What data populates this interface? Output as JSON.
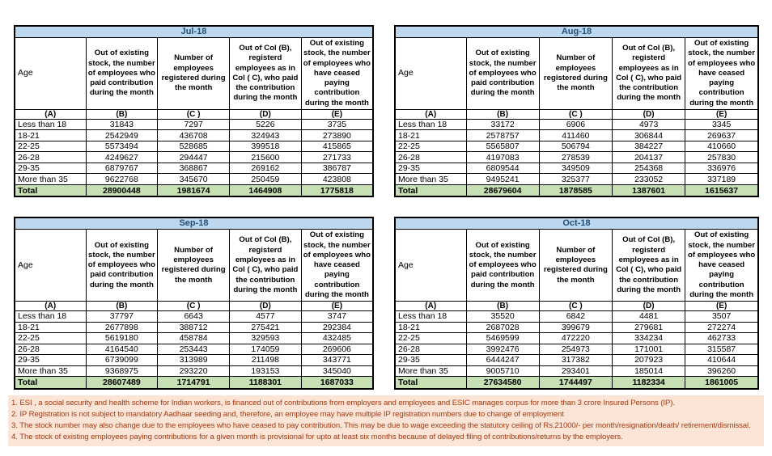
{
  "header_columns": {
    "age": "Age",
    "b": "Out of existing stock, the number of employees who paid contribution during the month",
    "c": "Number of employees registered during the month",
    "d": "Out of Col (B), registerd employees as in Col ( C), who paid the contribution during the month",
    "e": "Out of existing stock, the number of  employees who have ceased paying contribution during the month",
    "letters": [
      "(A)",
      "(B)",
      "(C )",
      "(D)",
      "(E)"
    ]
  },
  "tables": [
    {
      "month": "Jul-18",
      "rows": [
        {
          "age": "Less than 18",
          "values": [
            "31843",
            "7297",
            "5226",
            "3735"
          ]
        },
        {
          "age": "18-21",
          "values": [
            "2542949",
            "436708",
            "324943",
            "273890"
          ]
        },
        {
          "age": "22-25",
          "values": [
            "5573494",
            "528685",
            "399518",
            "415865"
          ]
        },
        {
          "age": "26-28",
          "values": [
            "4249627",
            "294447",
            "215600",
            "271733"
          ]
        },
        {
          "age": "29-35",
          "values": [
            "6879767",
            "368867",
            "269162",
            "386787"
          ]
        },
        {
          "age": "More than 35",
          "values": [
            "9622768",
            "345670",
            "250459",
            "423808"
          ]
        }
      ],
      "total": {
        "label": "Total",
        "values": [
          "28900448",
          "1981674",
          "1464908",
          "1775818"
        ]
      }
    },
    {
      "month": "Aug-18",
      "rows": [
        {
          "age": "Less than 18",
          "values": [
            "33172",
            "6906",
            "4973",
            "3345"
          ]
        },
        {
          "age": "18-21",
          "values": [
            "2578757",
            "411460",
            "306844",
            "269637"
          ]
        },
        {
          "age": "22-25",
          "values": [
            "5565807",
            "506794",
            "384227",
            "410660"
          ]
        },
        {
          "age": "26-28",
          "values": [
            "4197083",
            "278539",
            "204137",
            "257830"
          ]
        },
        {
          "age": "29-35",
          "values": [
            "6809544",
            "349509",
            "254368",
            "336976"
          ]
        },
        {
          "age": "More than 35",
          "values": [
            "9495241",
            "325377",
            "233052",
            "337189"
          ]
        }
      ],
      "total": {
        "label": "Total",
        "values": [
          "28679604",
          "1878585",
          "1387601",
          "1615637"
        ]
      }
    },
    {
      "month": "Sep-18",
      "rows": [
        {
          "age": "Less than 18",
          "values": [
            "37797",
            "6643",
            "4577",
            "3747"
          ]
        },
        {
          "age": "18-21",
          "values": [
            "2677898",
            "388712",
            "275421",
            "292384"
          ]
        },
        {
          "age": "22-25",
          "values": [
            "5619180",
            "458784",
            "329593",
            "432485"
          ]
        },
        {
          "age": "26-28",
          "values": [
            "4164540",
            "253443",
            "174059",
            "269606"
          ]
        },
        {
          "age": "29-35",
          "values": [
            "6739099",
            "313989",
            "211498",
            "343771"
          ]
        },
        {
          "age": "More than 35",
          "values": [
            "9368975",
            "293220",
            "193153",
            "345040"
          ]
        }
      ],
      "total": {
        "label": "Total",
        "values": [
          "28607489",
          "1714791",
          "1188301",
          "1687033"
        ]
      }
    },
    {
      "month": "Oct-18",
      "rows": [
        {
          "age": "Less than 18",
          "values": [
            "35520",
            "6842",
            "4481",
            "3507"
          ]
        },
        {
          "age": "18-21",
          "values": [
            "2687028",
            "399679",
            "279681",
            "272274"
          ]
        },
        {
          "age": "22-25",
          "values": [
            "5469599",
            "472220",
            "334234",
            "462733"
          ]
        },
        {
          "age": "26-28",
          "values": [
            "3992476",
            "254973",
            "171001",
            "315587"
          ]
        },
        {
          "age": "29-35",
          "values": [
            "6444247",
            "317382",
            "207923",
            "410644"
          ]
        },
        {
          "age": "More than 35",
          "values": [
            "9005710",
            "293401",
            "185014",
            "396260"
          ]
        }
      ],
      "total": {
        "label": "Total",
        "values": [
          "27634580",
          "1744497",
          "1182334",
          "1861005"
        ]
      }
    }
  ],
  "footnotes": [
    "1. ESI , a social security and health scheme for Indian workers, is financed out of contributions from employers and employees and ESIC manages corpus for more than 3 crore Insured Persons (IP).",
    "2. IP Registration is not subject to mandatory Aadhaar seeding and, therefore, an employee may have multiple IP registration numbers due to change of employment",
    "3. The stock number may also change due to the employees who have ceased to pay contribution. This may  be due to wage exceeding the statutory ceiling of  Rs.21000/- per month/resignation/death/ retirement/dismissal.",
    "4. The stock of existing employees paying contributions for a given month is provisional for upto at least six months because of delayed filing of contributions/returns by the employers."
  ],
  "colors": {
    "month_header_bg": "#BDD7EE",
    "month_header_text": "#1F4E79",
    "total_row_bg": "#C6E0B4",
    "footnote_bg": "#FCE4D6",
    "footnote_text": "#A23B12"
  }
}
